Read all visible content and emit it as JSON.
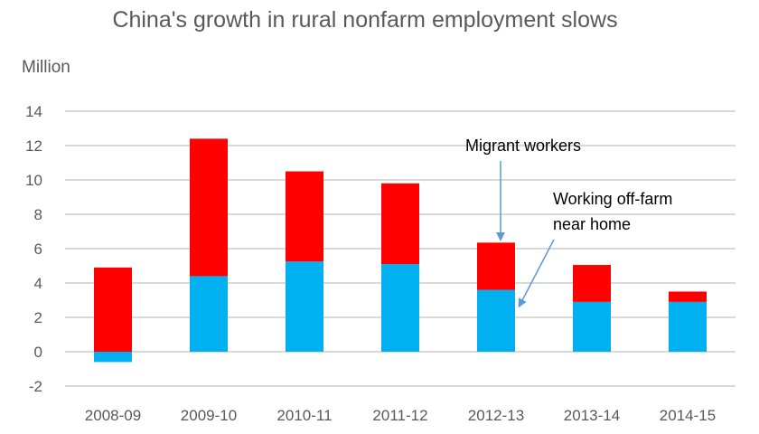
{
  "chart_data": {
    "type": "bar",
    "stacked": true,
    "title": "China's growth in rural nonfarm employment slows",
    "ylabel": "Million",
    "xlabel": "",
    "ylim": [
      -2,
      14
    ],
    "yticks": [
      -2,
      0,
      2,
      4,
      6,
      8,
      10,
      12,
      14
    ],
    "grid": true,
    "legend": "none (inline annotations)",
    "categories": [
      "2008-09",
      "2009-10",
      "2010-11",
      "2011-12",
      "2012-13",
      "2013-14",
      "2014-15"
    ],
    "series": [
      {
        "name": "Working off-farm near home",
        "color": "#00B0F0",
        "values": [
          -0.6,
          4.4,
          5.25,
          5.1,
          3.6,
          2.9,
          2.9
        ]
      },
      {
        "name": "Migrant workers",
        "color": "#FF0000",
        "values": [
          4.9,
          8.0,
          5.25,
          4.7,
          2.75,
          2.15,
          0.6
        ]
      }
    ],
    "totals": [
      4.9,
      12.4,
      10.5,
      9.8,
      6.35,
      5.05,
      3.5
    ],
    "annotations": [
      {
        "text": "Migrant workers",
        "points_to": "2012-13 Migrant workers segment"
      },
      {
        "text": "Working off-farm near home",
        "points_to": "2012-13 Working off-farm near home segment"
      }
    ]
  },
  "labels": {
    "title": "China's growth in rural nonfarm employment slows",
    "unit": "Million",
    "anno_migrant": "Migrant workers",
    "anno_near_line1": "Working off-farm",
    "anno_near_line2": "near home"
  },
  "colors": {
    "migrant": "#FF0000",
    "near_home": "#00B0F0",
    "grid": "#D9D9D9",
    "text": "#595959",
    "arrow": "#5B9BD5"
  }
}
